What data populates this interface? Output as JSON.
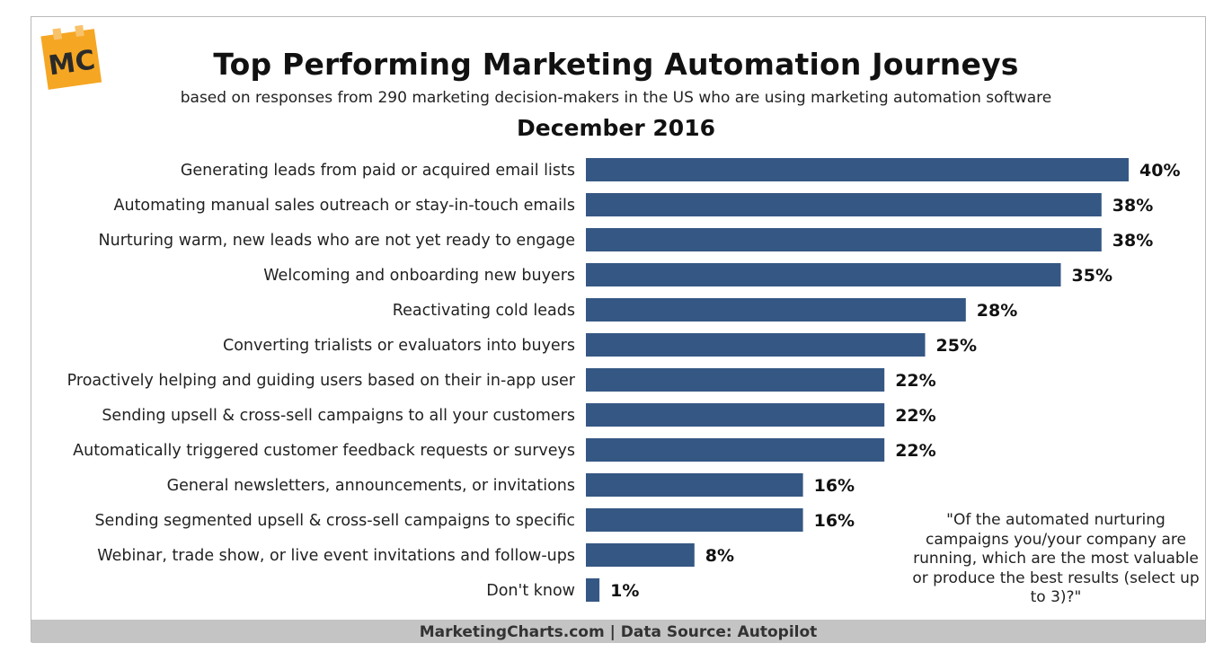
{
  "logo": {
    "text": "MC",
    "color": "#f5a623"
  },
  "chart_data": {
    "type": "bar",
    "orientation": "horizontal",
    "title": "Top Performing Marketing Automation Journeys",
    "subtitle": "based on responses from 290 marketing decision-makers in the US who are using marketing automation software",
    "period": "December 2016",
    "categories": [
      "Generating leads from paid or acquired email lists",
      "Automating manual sales outreach or stay-in-touch emails",
      "Nurturing warm, new leads who are not yet ready to engage",
      "Welcoming and onboarding new buyers",
      "Reactivating cold leads",
      "Converting trialists or evaluators into buyers",
      "Proactively helping and guiding users based on their in-app user",
      "Sending upsell & cross-sell campaigns to all your customers",
      "Automatically triggered customer feedback requests or surveys",
      "General newsletters, announcements, or invitations",
      "Sending segmented upsell & cross-sell campaigns to specific",
      "Webinar, trade show, or live event invitations and follow-ups",
      "Don't know"
    ],
    "values": [
      40,
      38,
      38,
      35,
      28,
      25,
      22,
      22,
      22,
      16,
      16,
      8,
      1
    ],
    "value_suffix": "%",
    "xlim": [
      0,
      40
    ],
    "bar_color": "#355784",
    "grid": false,
    "legend": "none",
    "annotation": "\"Of the automated nurturing campaigns you/your company are running, which are the most valuable or produce the best results (select up to 3)?\""
  },
  "footer": {
    "text": "MarketingCharts.com | Data Source: Autopilot"
  }
}
